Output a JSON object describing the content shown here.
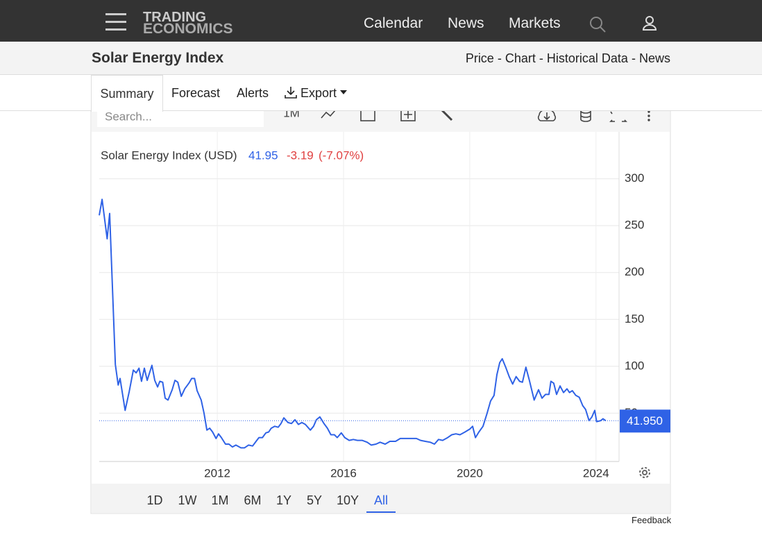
{
  "nav": {
    "logo_top": "TRADING",
    "logo_bottom": "ECONOMICS",
    "links": [
      "Calendar",
      "News",
      "Markets"
    ]
  },
  "header": {
    "title": "Solar Energy Index",
    "breadcrumbs": [
      "Price",
      "Chart",
      "Historical Data",
      "News"
    ],
    "separator": "-"
  },
  "tabs": [
    "Summary",
    "Forecast",
    "Alerts",
    "Export"
  ],
  "toolbar": {
    "search": "Search...",
    "interval": "1M"
  },
  "ranges": [
    "1D",
    "1W",
    "1M",
    "6M",
    "1Y",
    "5Y",
    "10Y",
    "All"
  ],
  "feedback": "Feedback",
  "chart_data": {
    "type": "line",
    "legend_name": "Solar Energy Index (USD)",
    "last": 41.95,
    "last_label": "41.950",
    "change": "-3.19",
    "change_pct": "(-7.07%)",
    "color": "#2f62e6",
    "grid": true,
    "xlim": [
      2008.26,
      2024.73
    ],
    "xticks": [
      2012,
      2016,
      2020,
      2024
    ],
    "ylim": [
      0,
      350
    ],
    "yticks": [
      50,
      100,
      150,
      200,
      250,
      300
    ],
    "x": [
      2008.26,
      2008.35,
      2008.51,
      2008.59,
      2008.77,
      2008.86,
      2008.92,
      2009.08,
      2009.21,
      2009.34,
      2009.43,
      2009.52,
      2009.6,
      2009.69,
      2009.78,
      2009.93,
      2010.02,
      2010.11,
      2010.18,
      2010.27,
      2010.35,
      2010.44,
      2010.57,
      2010.66,
      2010.75,
      2010.86,
      2010.97,
      2011.1,
      2011.19,
      2011.28,
      2011.36,
      2011.49,
      2011.58,
      2011.67,
      2011.76,
      2011.85,
      2011.96,
      2012.04,
      2012.13,
      2012.26,
      2012.37,
      2012.48,
      2012.59,
      2012.75,
      2012.86,
      2012.99,
      2013.12,
      2013.23,
      2013.32,
      2013.43,
      2013.54,
      2013.63,
      2013.71,
      2013.82,
      2013.93,
      2014.02,
      2014.11,
      2014.24,
      2014.35,
      2014.46,
      2014.57,
      2014.68,
      2014.79,
      2014.95,
      2015.05,
      2015.14,
      2015.25,
      2015.38,
      2015.49,
      2015.6,
      2015.71,
      2015.8,
      2015.93,
      2016.04,
      2016.18,
      2016.31,
      2016.44,
      2016.59,
      2016.75,
      2016.88,
      2017.03,
      2017.16,
      2017.32,
      2017.47,
      2017.65,
      2017.8,
      2017.98,
      2018.13,
      2018.31,
      2018.44,
      2018.59,
      2018.75,
      2018.88,
      2019.01,
      2019.14,
      2019.3,
      2019.43,
      2019.56,
      2019.69,
      2019.85,
      2020.0,
      2020.09,
      2020.18,
      2020.29,
      2020.42,
      2020.55,
      2020.66,
      2020.77,
      2020.86,
      2020.95,
      2021.03,
      2021.14,
      2021.25,
      2021.36,
      2021.47,
      2021.58,
      2021.67,
      2021.78,
      2021.89,
      2022.04,
      2022.18,
      2022.29,
      2022.4,
      2022.51,
      2022.57,
      2022.66,
      2022.75,
      2022.86,
      2022.97,
      2023.08,
      2023.16,
      2023.25,
      2023.36,
      2023.47,
      2023.58,
      2023.67,
      2023.78,
      2023.87,
      2023.96,
      2024.02,
      2024.15,
      2024.22,
      2024.31
    ],
    "values": [
      261,
      278,
      236,
      263,
      102,
      80,
      87,
      53,
      73,
      96,
      93,
      98,
      84,
      98,
      85,
      101,
      85,
      78,
      84,
      83,
      66,
      64,
      75,
      85,
      83,
      68,
      76,
      82,
      87,
      87,
      74,
      64,
      50,
      32,
      34,
      30,
      23,
      28,
      24,
      17,
      17,
      14,
      16,
      13,
      13,
      16,
      15,
      20,
      24,
      24,
      29,
      30,
      34,
      36,
      35,
      39,
      45,
      40,
      39,
      43,
      38,
      40,
      38,
      32,
      36,
      43,
      46,
      39,
      34,
      27,
      27,
      24,
      29,
      24,
      21,
      22,
      21,
      21,
      19,
      16,
      17,
      19,
      17,
      20,
      20,
      23,
      23,
      23,
      23,
      21,
      20,
      19,
      17,
      22,
      21,
      24,
      27,
      28,
      27,
      30,
      33,
      36,
      24,
      30,
      36,
      50,
      63,
      69,
      91,
      104,
      108,
      99,
      89,
      81,
      89,
      84,
      83,
      99,
      85,
      64,
      75,
      66,
      70,
      70,
      84,
      82,
      70,
      79,
      72,
      76,
      72,
      74,
      69,
      67,
      58,
      54,
      42,
      46,
      53,
      41,
      42,
      44,
      41.95
    ]
  }
}
